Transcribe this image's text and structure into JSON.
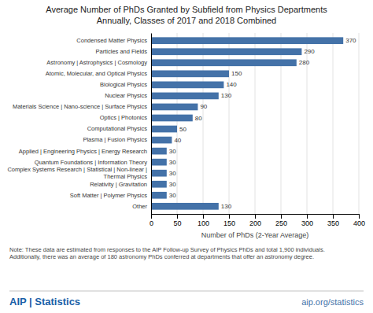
{
  "chart_data": {
    "type": "bar",
    "orientation": "horizontal",
    "title": "Average Number of PhDs Granted by Subfield from Physics Departments",
    "subtitle": "Annually, Classes of 2017 and 2018 Combined",
    "categories": [
      "Other",
      "Soft Matter | Polymer Physics",
      "Relativity | Gravitation",
      "Complex Systems Research | Statistical | Non-linear | Thermal Physics",
      "Quantum Foundations | Information Theory",
      "Applied | Engineering Physics | Energy Research",
      "Plasma | Fusion Physics",
      "Computational Physics",
      "Optics | Photonics",
      "Materials Science | Nano-science | Surface Physics",
      "Nuclear Physics",
      "Biological Physics",
      "Atomic, Molecular, and Optical Physics",
      "Astronomy | Astrophysics | Cosmology",
      "Particles and Fields",
      "Condensed Matter Physics"
    ],
    "values": [
      130,
      30,
      30,
      30,
      30,
      30,
      40,
      50,
      80,
      90,
      130,
      140,
      150,
      280,
      290,
      370
    ],
    "color": "#4472a8",
    "xlabel": "Number of PhDs (2-Year Average)",
    "xlim": [
      0,
      400
    ],
    "xticks": [
      0,
      50,
      100,
      150,
      200,
      250,
      300,
      350,
      400
    ],
    "grid": true,
    "data_labels": true,
    "annotations": [
      "Note: These data are estimated from responses to the AIP Follow-up Survey of Physics PhDs and total 1,900 individuals.",
      "Additionally, there was an average of 180 astronomy PhDs conferred at departments that offer an astronomy degree.",
      "AIP | Statistics",
      "aip.org/statistics"
    ]
  }
}
